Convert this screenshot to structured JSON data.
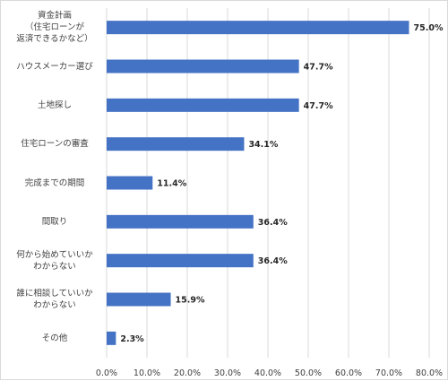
{
  "chart_data": {
    "type": "bar",
    "orientation": "horizontal",
    "categories": [
      "資金計画\n（住宅ローンが\n返済できるかなど）",
      "ハウスメーカー選び",
      "土地探し",
      "住宅ローンの審査",
      "完成までの期間",
      "間取り",
      "何から始めていいか\nわからない",
      "誰に相談していいか\nわからない",
      "その他"
    ],
    "values": [
      75.0,
      47.7,
      47.7,
      34.1,
      11.4,
      36.4,
      36.4,
      15.9,
      2.3
    ],
    "value_labels": [
      "75.0%",
      "47.7%",
      "47.7%",
      "34.1%",
      "11.4%",
      "36.4%",
      "36.4%",
      "15.9%",
      "2.3%"
    ],
    "xticks": [
      "0.0%",
      "10.0%",
      "20.0%",
      "30.0%",
      "40.0%",
      "50.0%",
      "60.0%",
      "70.0%",
      "80.0%"
    ],
    "xlim": [
      0,
      80
    ],
    "grid": true,
    "bar_color": "#4472c4"
  }
}
